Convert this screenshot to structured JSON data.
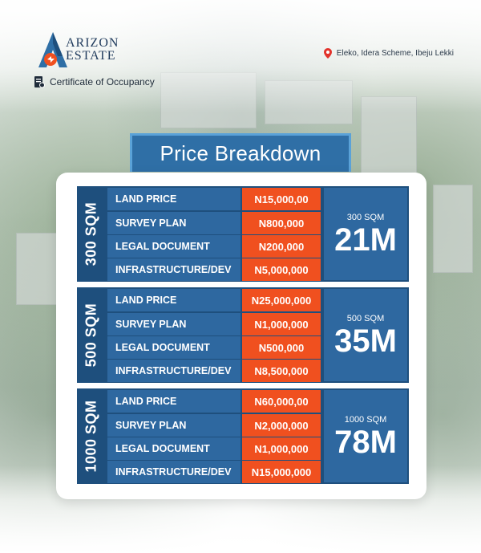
{
  "brand": {
    "name_line1": "ARIZON",
    "name_line2": "ESTATE",
    "accent": "#f0501f",
    "primary": "#1e4f7d"
  },
  "certificate": {
    "label": "Certificate of Occupancy",
    "icon": "document-icon"
  },
  "location": {
    "text": "Eleko, Idera Scheme, Ibeju Lekki",
    "icon": "map-pin-icon"
  },
  "title": "Price Breakdown",
  "sections": [
    {
      "label": "300 SQM",
      "rows": [
        {
          "name": "LAND PRICE",
          "value": "N15,000,00"
        },
        {
          "name": "SURVEY PLAN",
          "value": "N800,000"
        },
        {
          "name": "LEGAL DOCUMENT",
          "value": "N200,000"
        },
        {
          "name": "INFRASTRUCTURE/DEV",
          "value": "N5,000,000"
        }
      ],
      "total_size": "300 SQM",
      "total_amount": "21M"
    },
    {
      "label": "500 SQM",
      "rows": [
        {
          "name": "LAND PRICE",
          "value": "N25,000,000"
        },
        {
          "name": "SURVEY PLAN",
          "value": "N1,000,000"
        },
        {
          "name": "LEGAL DOCUMENT",
          "value": "N500,000"
        },
        {
          "name": "INFRASTRUCTURE/DEV",
          "value": "N8,500,000"
        }
      ],
      "total_size": "500 SQM",
      "total_amount": "35M"
    },
    {
      "label": "1000 SQM",
      "rows": [
        {
          "name": "LAND PRICE",
          "value": "N60,000,00"
        },
        {
          "name": "SURVEY PLAN",
          "value": "N2,000,000"
        },
        {
          "name": "LEGAL DOCUMENT",
          "value": "N1,000,000"
        },
        {
          "name": "INFRASTRUCTURE/DEV",
          "value": "N15,000,000"
        }
      ],
      "total_size": "1000 SQM",
      "total_amount": "78M"
    }
  ]
}
